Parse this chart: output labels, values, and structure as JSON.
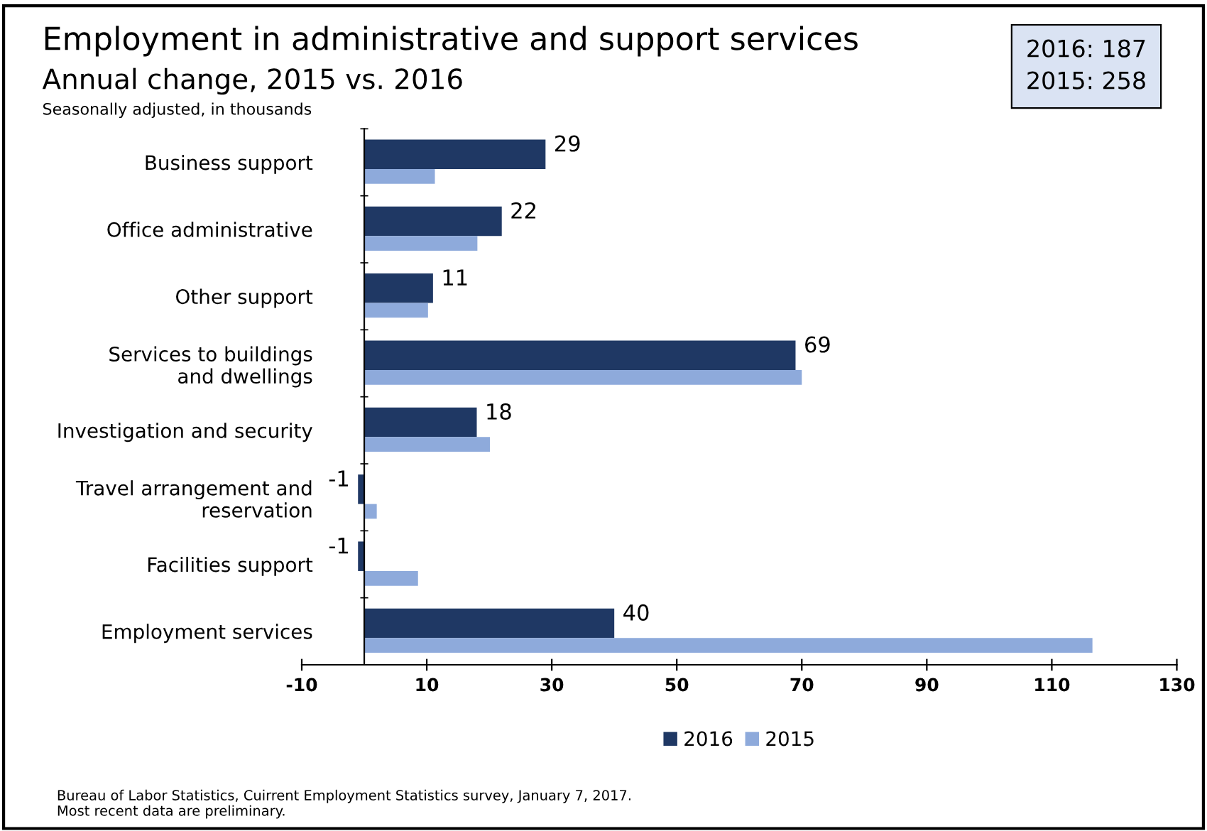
{
  "chart_data": {
    "type": "bar",
    "orientation": "horizontal",
    "title": "Employment in administrative and support services",
    "subtitle": "Annual change, 2015 vs. 2016",
    "xlabel": "Seasonally adjusted, in thousands",
    "categories": [
      "Business support",
      "Office administrative",
      "Other support",
      "Services to buildings\nand dwellings",
      "Investigation and security",
      "Travel arrangement and\nreservation",
      "Facilities support",
      "Employment services"
    ],
    "series": [
      {
        "name": "2016",
        "color": "#1f3864",
        "values": [
          29,
          22,
          11,
          69,
          18,
          -1,
          -1,
          40
        ],
        "value_labels": [
          "29",
          "22",
          "11",
          "69",
          "18",
          "-1",
          "-1",
          "40"
        ]
      },
      {
        "name": "2015",
        "color": "#8eaadb",
        "values": [
          11.3,
          18.1,
          10.2,
          70.0,
          20.1,
          2.0,
          8.6,
          116.5
        ]
      }
    ],
    "xlim": [
      -10,
      130
    ],
    "xticks": [
      -10,
      10,
      30,
      50,
      70,
      90,
      110,
      130
    ],
    "grid": false,
    "legend": "bottom",
    "annotations": [
      "2016: 187\n2015: 258",
      "Bureau of Labor Statistics, Cuirrent Employment Statistics survey, January 7, 2017.\nMost recent data are preliminary."
    ]
  }
}
